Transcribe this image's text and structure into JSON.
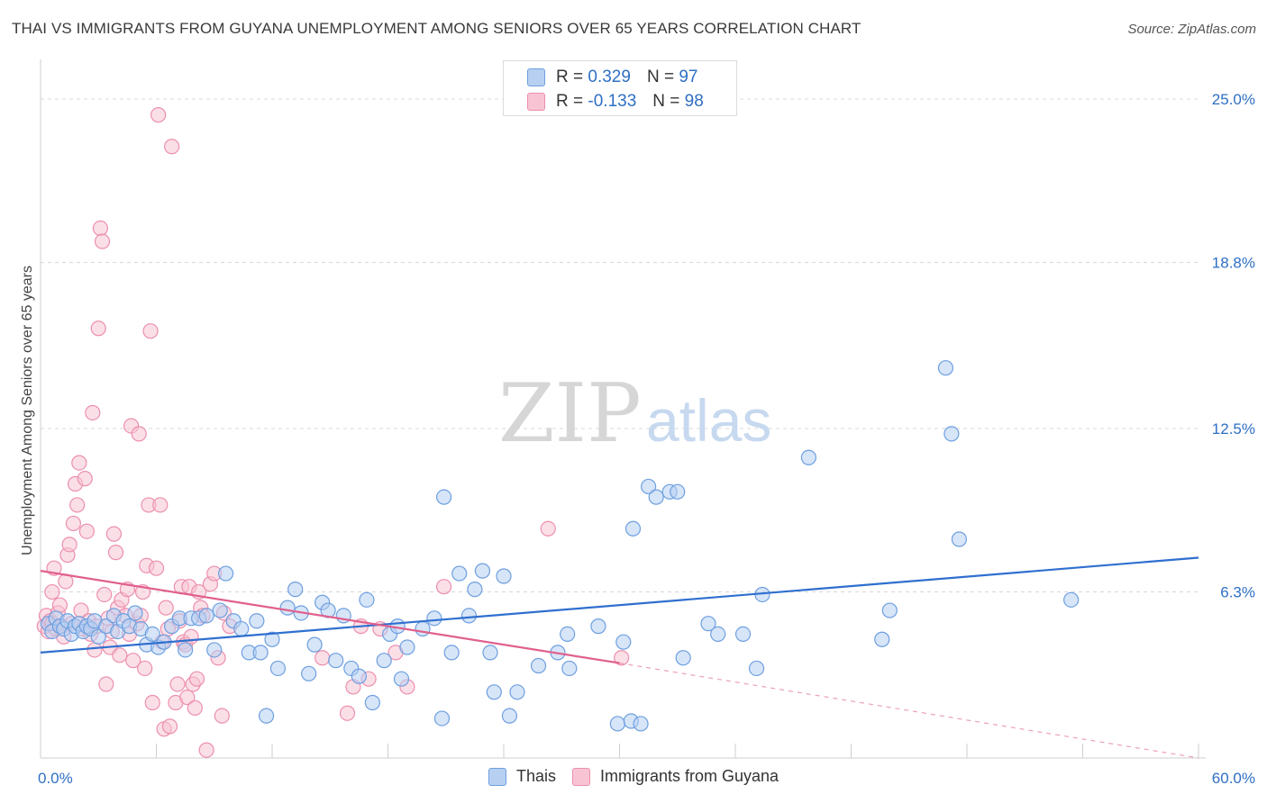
{
  "header": {
    "title": "THAI VS IMMIGRANTS FROM GUYANA UNEMPLOYMENT AMONG SENIORS OVER 65 YEARS CORRELATION CHART",
    "source": "Source: ZipAtlas.com"
  },
  "watermark": {
    "zip": "ZIP",
    "atlas": "atlas"
  },
  "legend_top": {
    "rows": [
      {
        "r_label": "R =",
        "r_value": "0.329",
        "n_label": "N =",
        "n_value": "97"
      },
      {
        "r_label": "R =",
        "r_value": "-0.133",
        "n_label": "N =",
        "n_value": "98"
      }
    ]
  },
  "colors": {
    "thai_fill": "#b7d0f2",
    "thai_stroke": "#6d9fe0",
    "thai_line": "#2f6fcf",
    "guyana_fill": "#f8c4d4",
    "guyana_stroke": "#ec8fae",
    "guyana_line": "#e0608e",
    "tick_label": "#2f6fc4",
    "grid": "#d8d8d8"
  },
  "chart_data": {
    "type": "scatter",
    "title": "THAI VS IMMIGRANTS FROM GUYANA UNEMPLOYMENT AMONG SENIORS OVER 65 YEARS CORRELATION CHART",
    "xlabel": "",
    "ylabel": "Unemployment Among Seniors over 65 years",
    "xlim": [
      0,
      60
    ],
    "ylim": [
      0,
      26.3
    ],
    "x_tick_labels": [
      {
        "value": 0,
        "label": "0.0%"
      },
      {
        "value": 60,
        "label": "60.0%"
      }
    ],
    "y_ticks": [
      {
        "value": 6.3,
        "label": "6.3%"
      },
      {
        "value": 12.5,
        "label": "12.5%"
      },
      {
        "value": 18.8,
        "label": "18.8%"
      },
      {
        "value": 25.0,
        "label": "25.0%"
      }
    ],
    "x_minor_ticks": [
      6,
      12,
      18,
      24,
      30,
      36,
      42,
      48,
      54,
      60
    ],
    "grid": "horizontal-dashed",
    "legend_placement": "bottom",
    "series": [
      {
        "name": "Thais",
        "r": 0.329,
        "n": 97,
        "trend": {
          "x": [
            0,
            60
          ],
          "y": [
            4.0,
            7.6
          ]
        },
        "points": [
          [
            0.4,
            5.1
          ],
          [
            0.6,
            4.8
          ],
          [
            0.8,
            5.3
          ],
          [
            1.0,
            5.0
          ],
          [
            1.2,
            4.9
          ],
          [
            1.4,
            5.2
          ],
          [
            1.6,
            4.7
          ],
          [
            1.8,
            5.0
          ],
          [
            2.0,
            5.1
          ],
          [
            2.2,
            4.8
          ],
          [
            2.4,
            5.0
          ],
          [
            2.6,
            4.9
          ],
          [
            2.8,
            5.2
          ],
          [
            3.0,
            4.6
          ],
          [
            3.4,
            5.0
          ],
          [
            3.8,
            5.4
          ],
          [
            4.0,
            4.8
          ],
          [
            4.3,
            5.2
          ],
          [
            4.6,
            5.0
          ],
          [
            4.9,
            5.5
          ],
          [
            5.2,
            4.9
          ],
          [
            5.5,
            4.3
          ],
          [
            5.8,
            4.7
          ],
          [
            6.1,
            4.2
          ],
          [
            6.4,
            4.4
          ],
          [
            6.8,
            5.0
          ],
          [
            7.2,
            5.3
          ],
          [
            7.5,
            4.1
          ],
          [
            7.8,
            5.3
          ],
          [
            8.2,
            5.3
          ],
          [
            8.6,
            5.4
          ],
          [
            9.0,
            4.1
          ],
          [
            9.3,
            5.6
          ],
          [
            9.6,
            7.0
          ],
          [
            10.0,
            5.2
          ],
          [
            10.4,
            4.9
          ],
          [
            10.8,
            4.0
          ],
          [
            11.2,
            5.2
          ],
          [
            11.4,
            4.0
          ],
          [
            11.7,
            1.6
          ],
          [
            12.0,
            4.5
          ],
          [
            12.3,
            3.4
          ],
          [
            12.8,
            5.7
          ],
          [
            13.2,
            6.4
          ],
          [
            13.5,
            5.5
          ],
          [
            13.9,
            3.2
          ],
          [
            14.2,
            4.3
          ],
          [
            14.6,
            5.9
          ],
          [
            14.9,
            5.6
          ],
          [
            15.3,
            3.7
          ],
          [
            15.7,
            5.4
          ],
          [
            16.1,
            3.4
          ],
          [
            16.5,
            3.1
          ],
          [
            16.9,
            6.0
          ],
          [
            17.2,
            2.1
          ],
          [
            17.8,
            3.7
          ],
          [
            18.1,
            4.7
          ],
          [
            18.5,
            5.0
          ],
          [
            18.7,
            3.0
          ],
          [
            19.0,
            4.2
          ],
          [
            19.8,
            4.9
          ],
          [
            20.4,
            5.3
          ],
          [
            20.8,
            1.5
          ],
          [
            20.9,
            9.9
          ],
          [
            21.3,
            4.0
          ],
          [
            21.7,
            7.0
          ],
          [
            22.2,
            5.4
          ],
          [
            22.5,
            6.4
          ],
          [
            22.9,
            7.1
          ],
          [
            23.3,
            4.0
          ],
          [
            23.5,
            2.5
          ],
          [
            24.0,
            6.9
          ],
          [
            24.3,
            1.6
          ],
          [
            24.7,
            2.5
          ],
          [
            25.8,
            3.5
          ],
          [
            26.8,
            4.0
          ],
          [
            27.3,
            4.7
          ],
          [
            27.4,
            3.4
          ],
          [
            28.9,
            5.0
          ],
          [
            29.9,
            1.3
          ],
          [
            30.2,
            4.4
          ],
          [
            30.6,
            1.4
          ],
          [
            30.7,
            8.7
          ],
          [
            31.1,
            1.3
          ],
          [
            31.5,
            10.3
          ],
          [
            31.9,
            9.9
          ],
          [
            32.6,
            10.1
          ],
          [
            33.0,
            10.1
          ],
          [
            33.3,
            3.8
          ],
          [
            34.6,
            5.1
          ],
          [
            35.1,
            4.7
          ],
          [
            36.4,
            4.7
          ],
          [
            37.1,
            3.4
          ],
          [
            37.4,
            6.2
          ],
          [
            39.8,
            11.4
          ],
          [
            43.6,
            4.5
          ],
          [
            44.0,
            5.6
          ],
          [
            46.9,
            14.8
          ],
          [
            47.2,
            12.3
          ],
          [
            47.6,
            8.3
          ],
          [
            53.4,
            6.0
          ]
        ]
      },
      {
        "name": "Immigrants from Guyana",
        "r": -0.133,
        "n": 98,
        "trend": {
          "x": [
            0,
            30
          ],
          "y": [
            7.1,
            3.6
          ]
        },
        "trend_dashed": {
          "x": [
            30,
            60
          ],
          "y": [
            3.6,
            0.0
          ]
        },
        "points": [
          [
            0.2,
            5.0
          ],
          [
            0.3,
            5.4
          ],
          [
            0.4,
            4.8
          ],
          [
            0.5,
            5.2
          ],
          [
            0.6,
            6.3
          ],
          [
            0.6,
            5.1
          ],
          [
            0.7,
            7.2
          ],
          [
            0.8,
            4.9
          ],
          [
            0.9,
            5.5
          ],
          [
            1.0,
            5.8
          ],
          [
            1.1,
            5.0
          ],
          [
            1.2,
            4.6
          ],
          [
            1.3,
            6.7
          ],
          [
            1.4,
            7.7
          ],
          [
            1.5,
            8.1
          ],
          [
            1.6,
            5.1
          ],
          [
            1.7,
            8.9
          ],
          [
            1.8,
            10.4
          ],
          [
            1.9,
            9.6
          ],
          [
            2.0,
            11.2
          ],
          [
            2.1,
            5.6
          ],
          [
            2.2,
            4.9
          ],
          [
            2.3,
            10.6
          ],
          [
            2.4,
            8.6
          ],
          [
            2.5,
            5.2
          ],
          [
            2.6,
            4.7
          ],
          [
            2.7,
            13.1
          ],
          [
            2.8,
            4.1
          ],
          [
            2.9,
            5.0
          ],
          [
            3.0,
            16.3
          ],
          [
            3.1,
            20.1
          ],
          [
            3.2,
            19.6
          ],
          [
            3.3,
            6.2
          ],
          [
            3.4,
            2.8
          ],
          [
            3.5,
            5.3
          ],
          [
            3.6,
            4.2
          ],
          [
            3.7,
            4.8
          ],
          [
            3.8,
            8.5
          ],
          [
            3.9,
            7.8
          ],
          [
            4.0,
            5.7
          ],
          [
            4.1,
            3.9
          ],
          [
            4.2,
            6.0
          ],
          [
            4.4,
            5.4
          ],
          [
            4.5,
            6.4
          ],
          [
            4.6,
            4.7
          ],
          [
            4.7,
            12.6
          ],
          [
            4.8,
            3.7
          ],
          [
            5.0,
            5.1
          ],
          [
            5.1,
            12.3
          ],
          [
            5.2,
            5.4
          ],
          [
            5.3,
            6.3
          ],
          [
            5.4,
            3.4
          ],
          [
            5.5,
            7.3
          ],
          [
            5.6,
            9.6
          ],
          [
            5.7,
            16.2
          ],
          [
            5.8,
            2.1
          ],
          [
            6.0,
            7.2
          ],
          [
            6.1,
            24.4
          ],
          [
            6.2,
            9.6
          ],
          [
            6.3,
            4.4
          ],
          [
            6.4,
            1.1
          ],
          [
            6.5,
            5.7
          ],
          [
            6.6,
            4.9
          ],
          [
            6.7,
            1.2
          ],
          [
            6.8,
            23.2
          ],
          [
            7.0,
            2.1
          ],
          [
            7.1,
            2.8
          ],
          [
            7.2,
            5.2
          ],
          [
            7.3,
            6.5
          ],
          [
            7.4,
            4.4
          ],
          [
            7.5,
            4.3
          ],
          [
            7.6,
            2.3
          ],
          [
            7.7,
            6.5
          ],
          [
            7.8,
            4.6
          ],
          [
            7.9,
            2.8
          ],
          [
            8.0,
            1.9
          ],
          [
            8.1,
            3.0
          ],
          [
            8.2,
            6.3
          ],
          [
            8.3,
            5.7
          ],
          [
            8.4,
            5.4
          ],
          [
            8.6,
            0.3
          ],
          [
            8.8,
            6.6
          ],
          [
            9.0,
            7.0
          ],
          [
            9.2,
            3.8
          ],
          [
            9.4,
            1.6
          ],
          [
            9.5,
            5.5
          ],
          [
            9.8,
            5.0
          ],
          [
            14.6,
            3.8
          ],
          [
            15.9,
            1.7
          ],
          [
            16.2,
            2.7
          ],
          [
            16.6,
            5.0
          ],
          [
            17.0,
            3.0
          ],
          [
            17.6,
            4.9
          ],
          [
            18.4,
            4.0
          ],
          [
            19.0,
            2.7
          ],
          [
            20.9,
            6.5
          ],
          [
            26.3,
            8.7
          ],
          [
            30.1,
            3.8
          ]
        ]
      }
    ]
  },
  "legend_bottom": {
    "items": [
      {
        "label": "Thais"
      },
      {
        "label": "Immigrants from Guyana"
      }
    ]
  }
}
